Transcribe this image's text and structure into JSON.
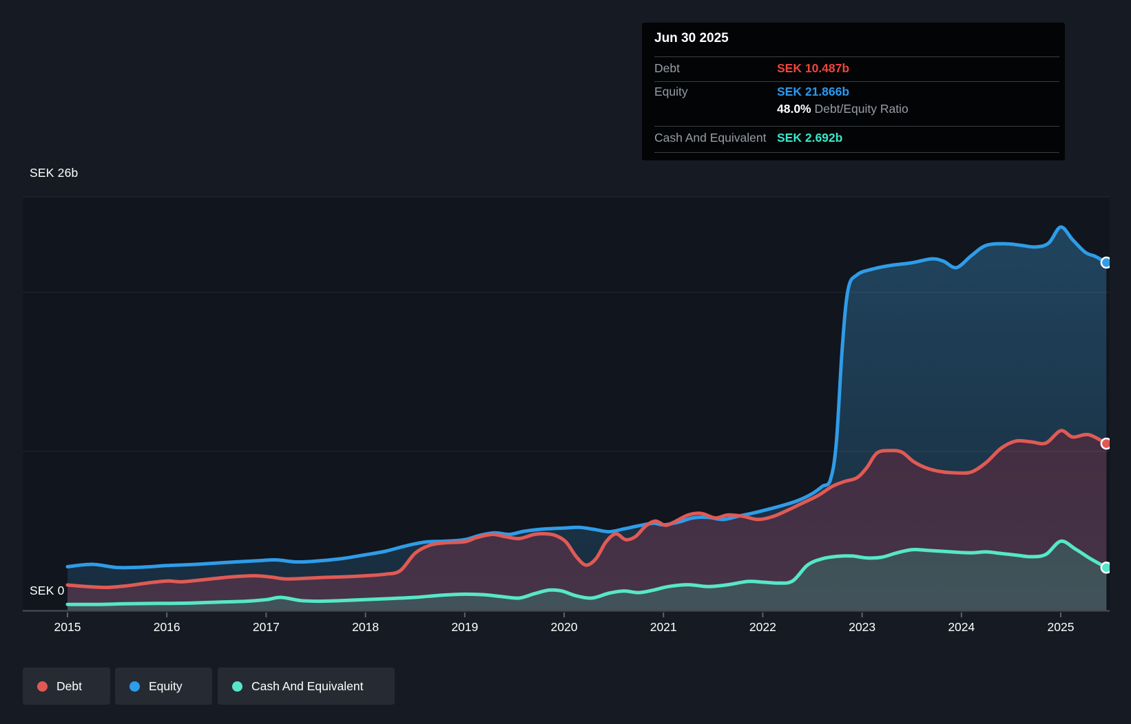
{
  "tooltip": {
    "date": "Jun 30 2025",
    "debt_label": "Debt",
    "debt_value": "SEK 10.487b",
    "equity_label": "Equity",
    "equity_value": "SEK 21.866b",
    "ratio_value": "48.0%",
    "ratio_label": "Debt/Equity Ratio",
    "cash_label": "Cash And Equivalent",
    "cash_value": "SEK 2.692b"
  },
  "y_axis": {
    "top_label": "SEK 26b",
    "zero_label": "SEK 0"
  },
  "x_axis": {
    "years": [
      "2015",
      "2016",
      "2017",
      "2018",
      "2019",
      "2020",
      "2021",
      "2022",
      "2023",
      "2024",
      "2025"
    ]
  },
  "legend": {
    "debt": "Debt",
    "equity": "Equity",
    "cash": "Cash And Equivalent"
  },
  "colors": {
    "debt": "#e05a55",
    "equity": "#2f9ce8",
    "cash": "#57e7c8",
    "debt_text": "#ee453c",
    "equity_text": "#2b9af0",
    "cash_text": "#38e8c8",
    "background": "#151a23",
    "tooltip_bg": "#030405",
    "chip_bg": "#262b33",
    "muted_text": "#969da6",
    "axis_line": "#41474f"
  },
  "chart_data": {
    "type": "area",
    "title": "Debt to Equity history (SEK billions)",
    "unit": "SEK b",
    "x_range": [
      2015.0,
      2025.5
    ],
    "ylim": [
      0,
      26
    ],
    "gridline_values": [
      26,
      20,
      10
    ],
    "legend_position": "bottom",
    "series": [
      {
        "name": "Equity",
        "color": "#2f9ce8",
        "end_value": 21.866,
        "points": [
          [
            2015.0,
            2.75
          ],
          [
            2015.25,
            2.9
          ],
          [
            2015.5,
            2.7
          ],
          [
            2015.75,
            2.72
          ],
          [
            2016.0,
            2.82
          ],
          [
            2016.3,
            2.9
          ],
          [
            2016.6,
            3.02
          ],
          [
            2016.9,
            3.12
          ],
          [
            2017.1,
            3.18
          ],
          [
            2017.3,
            3.05
          ],
          [
            2017.5,
            3.1
          ],
          [
            2017.75,
            3.25
          ],
          [
            2018.0,
            3.5
          ],
          [
            2018.2,
            3.72
          ],
          [
            2018.4,
            4.05
          ],
          [
            2018.6,
            4.3
          ],
          [
            2018.8,
            4.35
          ],
          [
            2019.0,
            4.45
          ],
          [
            2019.15,
            4.72
          ],
          [
            2019.3,
            4.88
          ],
          [
            2019.45,
            4.78
          ],
          [
            2019.6,
            4.98
          ],
          [
            2019.8,
            5.12
          ],
          [
            2020.0,
            5.18
          ],
          [
            2020.15,
            5.22
          ],
          [
            2020.3,
            5.1
          ],
          [
            2020.45,
            4.95
          ],
          [
            2020.6,
            5.12
          ],
          [
            2020.75,
            5.32
          ],
          [
            2020.9,
            5.48
          ],
          [
            2021.0,
            5.38
          ],
          [
            2021.15,
            5.55
          ],
          [
            2021.3,
            5.82
          ],
          [
            2021.45,
            5.85
          ],
          [
            2021.6,
            5.72
          ],
          [
            2021.75,
            5.92
          ],
          [
            2021.9,
            6.12
          ],
          [
            2022.05,
            6.35
          ],
          [
            2022.2,
            6.6
          ],
          [
            2022.35,
            6.9
          ],
          [
            2022.5,
            7.35
          ],
          [
            2022.6,
            7.8
          ],
          [
            2022.68,
            8.2
          ],
          [
            2022.74,
            10.5
          ],
          [
            2022.8,
            16.5
          ],
          [
            2022.86,
            20.2
          ],
          [
            2022.95,
            21.1
          ],
          [
            2023.1,
            21.45
          ],
          [
            2023.3,
            21.7
          ],
          [
            2023.5,
            21.85
          ],
          [
            2023.7,
            22.1
          ],
          [
            2023.82,
            21.95
          ],
          [
            2023.95,
            21.55
          ],
          [
            2024.1,
            22.3
          ],
          [
            2024.25,
            22.95
          ],
          [
            2024.45,
            23.05
          ],
          [
            2024.6,
            22.95
          ],
          [
            2024.75,
            22.85
          ],
          [
            2024.88,
            23.1
          ],
          [
            2025.0,
            24.1
          ],
          [
            2025.12,
            23.3
          ],
          [
            2025.25,
            22.5
          ],
          [
            2025.35,
            22.25
          ],
          [
            2025.46,
            21.866
          ]
        ]
      },
      {
        "name": "Debt",
        "color": "#e05a55",
        "end_value": 10.487,
        "points": [
          [
            2015.0,
            1.6
          ],
          [
            2015.2,
            1.5
          ],
          [
            2015.4,
            1.45
          ],
          [
            2015.6,
            1.55
          ],
          [
            2015.8,
            1.72
          ],
          [
            2016.0,
            1.85
          ],
          [
            2016.15,
            1.8
          ],
          [
            2016.35,
            1.92
          ],
          [
            2016.55,
            2.05
          ],
          [
            2016.75,
            2.15
          ],
          [
            2016.9,
            2.18
          ],
          [
            2017.05,
            2.1
          ],
          [
            2017.2,
            1.98
          ],
          [
            2017.4,
            2.02
          ],
          [
            2017.6,
            2.08
          ],
          [
            2017.8,
            2.12
          ],
          [
            2018.0,
            2.18
          ],
          [
            2018.2,
            2.28
          ],
          [
            2018.35,
            2.5
          ],
          [
            2018.5,
            3.6
          ],
          [
            2018.65,
            4.1
          ],
          [
            2018.8,
            4.25
          ],
          [
            2019.0,
            4.32
          ],
          [
            2019.12,
            4.58
          ],
          [
            2019.28,
            4.78
          ],
          [
            2019.42,
            4.62
          ],
          [
            2019.55,
            4.52
          ],
          [
            2019.7,
            4.78
          ],
          [
            2019.82,
            4.82
          ],
          [
            2019.92,
            4.7
          ],
          [
            2020.02,
            4.3
          ],
          [
            2020.12,
            3.4
          ],
          [
            2020.22,
            2.85
          ],
          [
            2020.32,
            3.25
          ],
          [
            2020.42,
            4.3
          ],
          [
            2020.52,
            4.82
          ],
          [
            2020.62,
            4.45
          ],
          [
            2020.72,
            4.65
          ],
          [
            2020.82,
            5.3
          ],
          [
            2020.92,
            5.62
          ],
          [
            2021.02,
            5.35
          ],
          [
            2021.12,
            5.6
          ],
          [
            2021.25,
            6.0
          ],
          [
            2021.38,
            6.1
          ],
          [
            2021.52,
            5.82
          ],
          [
            2021.65,
            6.0
          ],
          [
            2021.8,
            5.92
          ],
          [
            2021.95,
            5.72
          ],
          [
            2022.1,
            5.9
          ],
          [
            2022.25,
            6.3
          ],
          [
            2022.4,
            6.75
          ],
          [
            2022.55,
            7.2
          ],
          [
            2022.7,
            7.8
          ],
          [
            2022.82,
            8.1
          ],
          [
            2022.95,
            8.35
          ],
          [
            2023.05,
            9.0
          ],
          [
            2023.15,
            9.9
          ],
          [
            2023.28,
            10.05
          ],
          [
            2023.4,
            9.95
          ],
          [
            2023.52,
            9.35
          ],
          [
            2023.65,
            8.95
          ],
          [
            2023.8,
            8.72
          ],
          [
            2023.95,
            8.65
          ],
          [
            2024.1,
            8.7
          ],
          [
            2024.25,
            9.3
          ],
          [
            2024.4,
            10.2
          ],
          [
            2024.55,
            10.65
          ],
          [
            2024.7,
            10.6
          ],
          [
            2024.85,
            10.52
          ],
          [
            2025.0,
            11.3
          ],
          [
            2025.12,
            10.9
          ],
          [
            2025.28,
            11.05
          ],
          [
            2025.46,
            10.487
          ]
        ]
      },
      {
        "name": "Cash And Equivalent",
        "color": "#57e7c8",
        "end_value": 2.692,
        "points": [
          [
            2015.0,
            0.38
          ],
          [
            2015.3,
            0.38
          ],
          [
            2015.6,
            0.42
          ],
          [
            2015.9,
            0.44
          ],
          [
            2016.2,
            0.46
          ],
          [
            2016.5,
            0.52
          ],
          [
            2016.8,
            0.58
          ],
          [
            2017.0,
            0.68
          ],
          [
            2017.15,
            0.82
          ],
          [
            2017.35,
            0.62
          ],
          [
            2017.55,
            0.58
          ],
          [
            2017.75,
            0.62
          ],
          [
            2018.0,
            0.68
          ],
          [
            2018.25,
            0.75
          ],
          [
            2018.5,
            0.82
          ],
          [
            2018.75,
            0.95
          ],
          [
            2019.0,
            1.02
          ],
          [
            2019.2,
            0.98
          ],
          [
            2019.4,
            0.85
          ],
          [
            2019.55,
            0.78
          ],
          [
            2019.7,
            1.05
          ],
          [
            2019.85,
            1.28
          ],
          [
            2019.98,
            1.22
          ],
          [
            2020.12,
            0.92
          ],
          [
            2020.28,
            0.78
          ],
          [
            2020.45,
            1.08
          ],
          [
            2020.6,
            1.22
          ],
          [
            2020.75,
            1.12
          ],
          [
            2020.9,
            1.28
          ],
          [
            2021.05,
            1.5
          ],
          [
            2021.25,
            1.62
          ],
          [
            2021.45,
            1.5
          ],
          [
            2021.65,
            1.62
          ],
          [
            2021.85,
            1.82
          ],
          [
            2022.0,
            1.78
          ],
          [
            2022.15,
            1.72
          ],
          [
            2022.3,
            1.85
          ],
          [
            2022.45,
            2.85
          ],
          [
            2022.6,
            3.25
          ],
          [
            2022.75,
            3.4
          ],
          [
            2022.9,
            3.42
          ],
          [
            2023.05,
            3.3
          ],
          [
            2023.2,
            3.35
          ],
          [
            2023.35,
            3.62
          ],
          [
            2023.5,
            3.82
          ],
          [
            2023.65,
            3.78
          ],
          [
            2023.8,
            3.72
          ],
          [
            2023.95,
            3.66
          ],
          [
            2024.1,
            3.62
          ],
          [
            2024.25,
            3.68
          ],
          [
            2024.4,
            3.58
          ],
          [
            2024.55,
            3.48
          ],
          [
            2024.7,
            3.38
          ],
          [
            2024.85,
            3.52
          ],
          [
            2025.0,
            4.35
          ],
          [
            2025.15,
            3.85
          ],
          [
            2025.3,
            3.25
          ],
          [
            2025.46,
            2.692
          ]
        ]
      }
    ]
  }
}
